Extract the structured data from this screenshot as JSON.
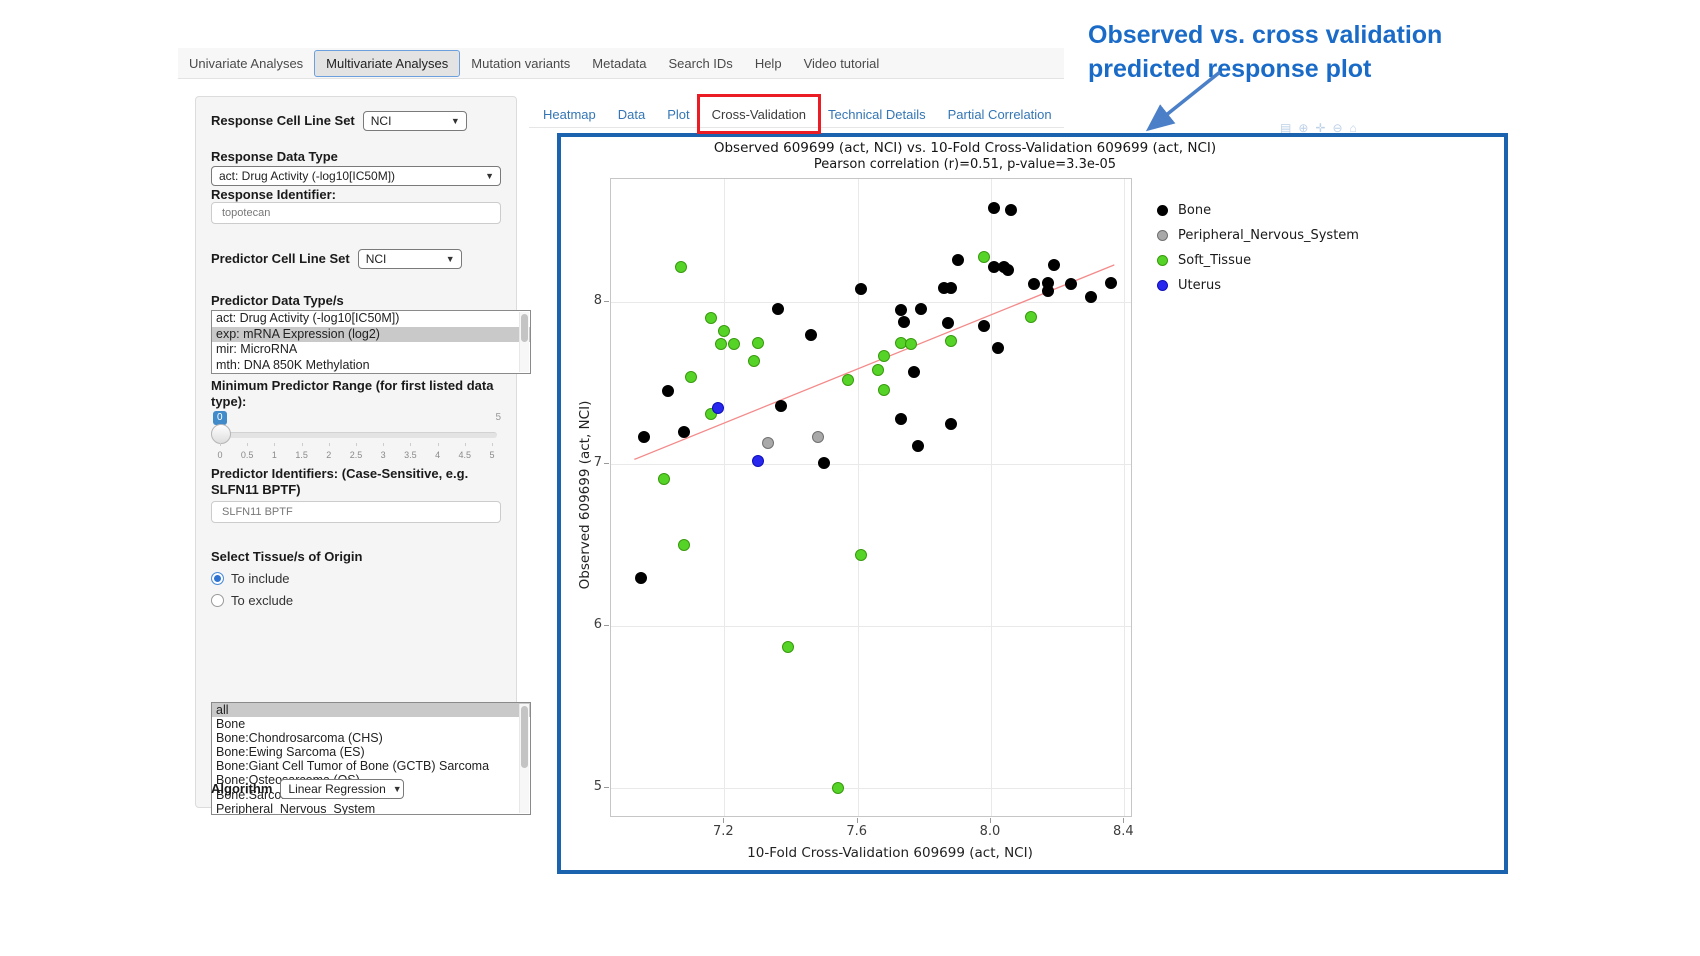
{
  "annotation": {
    "line1": "Observed vs. cross validation",
    "line2": "predicted response plot",
    "color": "#1a6bc7"
  },
  "navbar": {
    "items": [
      {
        "label": "Univariate Analyses",
        "active": false
      },
      {
        "label": "Multivariate Analyses",
        "active": true
      },
      {
        "label": "Mutation variants",
        "active": false
      },
      {
        "label": "Metadata",
        "active": false
      },
      {
        "label": "Search IDs",
        "active": false
      },
      {
        "label": "Help",
        "active": false
      },
      {
        "label": "Video tutorial",
        "active": false
      }
    ]
  },
  "main_tabs": {
    "items": [
      {
        "label": "Heatmap",
        "active": false
      },
      {
        "label": "Data",
        "active": false
      },
      {
        "label": "Plot",
        "active": false
      },
      {
        "label": "Cross-Validation",
        "active": true
      },
      {
        "label": "Technical Details",
        "active": false
      },
      {
        "label": "Partial Correlation",
        "active": false
      }
    ],
    "link_color": "#337ab7",
    "highlight_color": "#ec1c24"
  },
  "sidebar": {
    "response_cell_line_set": {
      "label": "Response Cell Line Set",
      "value": "NCI"
    },
    "response_data_type": {
      "label": "Response Data Type",
      "value": "act: Drug Activity (-log10[IC50M])"
    },
    "response_identifier": {
      "label": "Response Identifier:",
      "value": "topotecan"
    },
    "predictor_cell_line_set": {
      "label": "Predictor Cell Line Set",
      "value": "NCI"
    },
    "predictor_data_types": {
      "label": "Predictor Data Type/s",
      "options": [
        {
          "label": "act: Drug Activity (-log10[IC50M])",
          "selected": false
        },
        {
          "label": "exp: mRNA Expression (log2)",
          "selected": true
        },
        {
          "label": "mir: MicroRNA",
          "selected": false
        },
        {
          "label": "mth: DNA 850K Methylation",
          "selected": false
        }
      ]
    },
    "min_predictor_range": {
      "label": "Minimum Predictor Range (for first listed data type):",
      "value_badge": "0",
      "max_label": "5",
      "tick_labels": [
        "0",
        "0.5",
        "1",
        "1.5",
        "2",
        "2.5",
        "3",
        "3.5",
        "4",
        "4.5",
        "5"
      ]
    },
    "predictor_identifiers": {
      "label": "Predictor Identifiers: (Case-Sensitive, e.g. SLFN11 BPTF)",
      "value": "SLFN11 BPTF"
    },
    "tissue_origin": {
      "label": "Select Tissue/s of Origin",
      "radios": [
        {
          "label": "To include",
          "selected": true
        },
        {
          "label": "To exclude",
          "selected": false
        }
      ],
      "options": [
        {
          "label": "all",
          "selected": true
        },
        {
          "label": "Bone",
          "selected": false
        },
        {
          "label": "Bone:Chondrosarcoma (CHS)",
          "selected": false
        },
        {
          "label": "Bone:Ewing Sarcoma (ES)",
          "selected": false
        },
        {
          "label": "Bone:Giant Cell Tumor of Bone (GCTB) Sarcoma",
          "selected": false
        },
        {
          "label": "Bone:Osteosarcoma (OS)",
          "selected": false
        },
        {
          "label": "Bone:Sarcoma",
          "selected": false
        },
        {
          "label": "Peripheral_Nervous_System",
          "selected": false
        }
      ]
    },
    "algorithm": {
      "label": "Algorithm",
      "value": "Linear Regression"
    }
  },
  "modebar_icons": [
    {
      "name": "camera-icon",
      "glyph": "▤"
    },
    {
      "name": "zoom-icon",
      "glyph": "⊕"
    },
    {
      "name": "pan-icon",
      "glyph": "✛"
    },
    {
      "name": "zoom-out-icon",
      "glyph": "⊖"
    },
    {
      "name": "autoscale-icon",
      "glyph": "⌂"
    }
  ],
  "chart_data": {
    "type": "scatter",
    "title_line1": "Observed 609699 (act, NCI) vs. 10-Fold Cross-Validation 609699 (act, NCI)",
    "title_line2": "Pearson correlation (r)=0.51, p-value=3.3e-05",
    "xlabel": "10-Fold Cross-Validation 609699 (act, NCI)",
    "ylabel": "Observed 609699 (act, NCI)",
    "xlim": [
      6.86,
      8.42
    ],
    "ylim": [
      4.83,
      8.76
    ],
    "xticks": [
      {
        "v": 7.2,
        "label": "7.2"
      },
      {
        "v": 7.6,
        "label": "7.6"
      },
      {
        "v": 8.0,
        "label": "8.0"
      },
      {
        "v": 8.4,
        "label": "8.4"
      }
    ],
    "yticks": [
      {
        "v": 5,
        "label": "5"
      },
      {
        "v": 6,
        "label": "6"
      },
      {
        "v": 7,
        "label": "7"
      },
      {
        "v": 8,
        "label": "8"
      }
    ],
    "grid": true,
    "legend_position": "right",
    "regression_line": {
      "x1": 6.93,
      "y1": 7.03,
      "x2": 8.37,
      "y2": 8.23,
      "color": "#f48a8a"
    },
    "series": [
      {
        "name": "Bone",
        "color": "#000000",
        "edge": "#000000",
        "points": [
          [
            6.95,
            6.3
          ],
          [
            6.96,
            7.17
          ],
          [
            7.03,
            7.45
          ],
          [
            7.08,
            7.2
          ],
          [
            7.36,
            7.96
          ],
          [
            7.37,
            7.36
          ],
          [
            7.46,
            7.8
          ],
          [
            7.5,
            7.01
          ],
          [
            7.61,
            8.08
          ],
          [
            7.73,
            7.95
          ],
          [
            7.73,
            7.28
          ],
          [
            7.74,
            7.88
          ],
          [
            7.77,
            7.57
          ],
          [
            7.78,
            7.11
          ],
          [
            7.79,
            7.96
          ],
          [
            7.86,
            8.09
          ],
          [
            7.88,
            8.09
          ],
          [
            7.87,
            7.87
          ],
          [
            7.88,
            7.25
          ],
          [
            7.9,
            8.26
          ],
          [
            7.98,
            7.85
          ],
          [
            8.01,
            8.58
          ],
          [
            8.01,
            8.22
          ],
          [
            8.02,
            7.72
          ],
          [
            8.04,
            8.22
          ],
          [
            8.05,
            8.2
          ],
          [
            8.06,
            8.57
          ],
          [
            8.13,
            8.11
          ],
          [
            8.17,
            8.12
          ],
          [
            8.17,
            8.07
          ],
          [
            8.19,
            8.23
          ],
          [
            8.24,
            8.11
          ],
          [
            8.3,
            8.03
          ],
          [
            8.36,
            8.12
          ]
        ]
      },
      {
        "name": "Peripheral_Nervous_System",
        "color": "#a9a9a9",
        "edge": "#707070",
        "points": [
          [
            7.33,
            7.13
          ],
          [
            7.48,
            7.17
          ]
        ]
      },
      {
        "name": "Soft_Tissue",
        "color": "#55d427",
        "edge": "#37990d",
        "points": [
          [
            7.02,
            6.91
          ],
          [
            7.07,
            8.22
          ],
          [
            7.08,
            6.5
          ],
          [
            7.1,
            7.54
          ],
          [
            7.16,
            7.9
          ],
          [
            7.16,
            7.31
          ],
          [
            7.19,
            7.74
          ],
          [
            7.2,
            7.82
          ],
          [
            7.23,
            7.74
          ],
          [
            7.29,
            7.64
          ],
          [
            7.3,
            7.75
          ],
          [
            7.39,
            5.87
          ],
          [
            7.54,
            5.0
          ],
          [
            7.57,
            7.52
          ],
          [
            7.61,
            6.44
          ],
          [
            7.66,
            7.58
          ],
          [
            7.68,
            7.67
          ],
          [
            7.68,
            7.46
          ],
          [
            7.73,
            7.75
          ],
          [
            7.76,
            7.74
          ],
          [
            7.88,
            7.76
          ],
          [
            7.98,
            8.28
          ],
          [
            8.12,
            7.91
          ]
        ]
      },
      {
        "name": "Uterus",
        "color": "#2727ee",
        "edge": "#0f0fbb",
        "points": [
          [
            7.18,
            7.35
          ],
          [
            7.3,
            7.02
          ]
        ]
      }
    ]
  }
}
